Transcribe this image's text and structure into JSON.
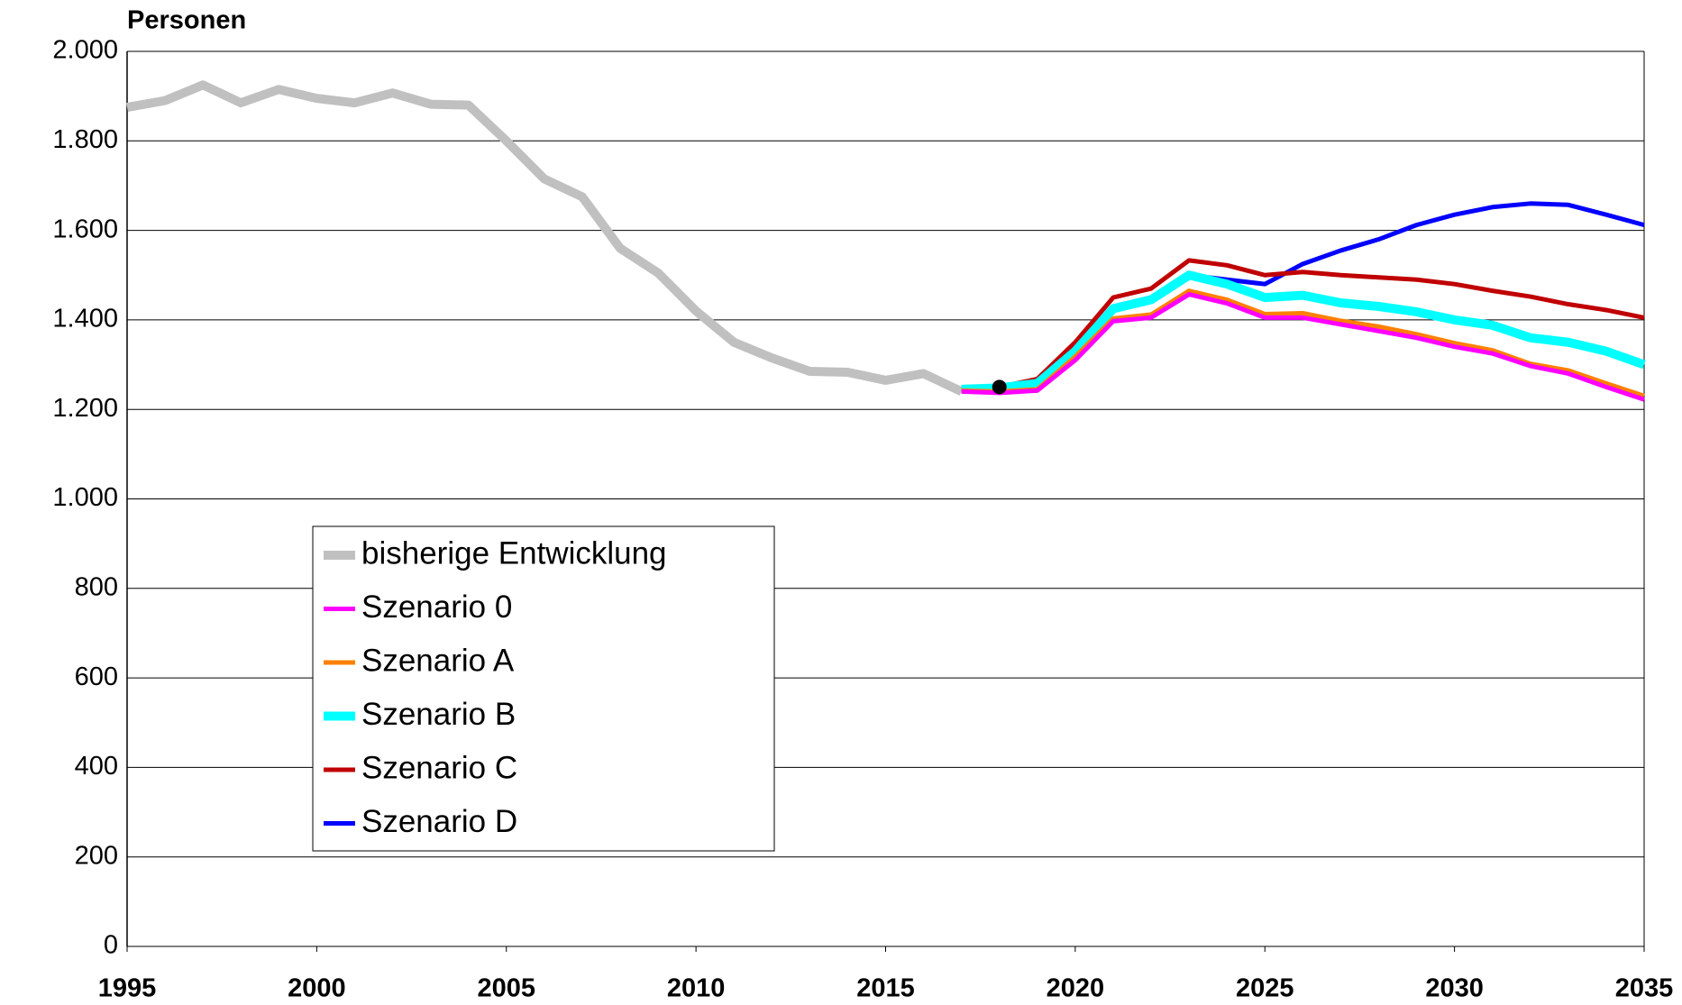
{
  "chart_data": {
    "type": "line",
    "y_label": "Personen",
    "ylim": [
      0,
      2000
    ],
    "yticks": [
      0,
      200,
      400,
      600,
      800,
      {
        "value": 1000,
        "label": "1.000"
      },
      {
        "value": 1200,
        "label": "1.200"
      },
      {
        "value": 1400,
        "label": "1.400"
      },
      {
        "value": 1600,
        "label": "1.600"
      },
      {
        "value": 1800,
        "label": "1.800"
      },
      {
        "value": 2000,
        "label": "2.000"
      }
    ],
    "xlim": [
      1995,
      2035
    ],
    "xticks": [
      1995,
      2000,
      2005,
      2010,
      2015,
      2020,
      2025,
      2030,
      2035
    ],
    "grid": true,
    "legend": "lower left",
    "series": [
      {
        "name": "bisherige Entwicklung",
        "color": "#c0c0c0",
        "x": [
          1995,
          1996,
          1997,
          1998,
          1999,
          2000,
          2001,
          2002,
          2003,
          2004,
          2005,
          2006,
          2007,
          2008,
          2009,
          2010,
          2011,
          2012,
          2013,
          2014,
          2015,
          2016,
          2017
        ],
        "values": [
          1875,
          1890,
          1925,
          1885,
          1915,
          1895,
          1885,
          1907,
          1882,
          1880,
          1800,
          1715,
          1675,
          1560,
          1505,
          1420,
          1350,
          1315,
          1285,
          1283,
          1265,
          1280,
          1240
        ]
      },
      {
        "name": "Szenario 0",
        "color": "#ff00ff",
        "x": [
          2017,
          2018,
          2019,
          2020,
          2021,
          2022,
          2023,
          2024,
          2025,
          2026,
          2027,
          2028,
          2029,
          2030,
          2031,
          2032,
          2033,
          2034,
          2035
        ],
        "values": [
          1240,
          1237,
          1242,
          1310,
          1397,
          1405,
          1457,
          1437,
          1405,
          1405,
          1390,
          1375,
          1360,
          1340,
          1325,
          1297,
          1280,
          1250,
          1222
        ]
      },
      {
        "name": "Szenario A",
        "color": "#ff8000",
        "x": [
          2017,
          2018,
          2019,
          2020,
          2021,
          2022,
          2023,
          2024,
          2025,
          2026,
          2027,
          2028,
          2029,
          2030,
          2031,
          2032,
          2033,
          2034,
          2035
        ],
        "values": [
          1242,
          1240,
          1245,
          1318,
          1403,
          1412,
          1465,
          1445,
          1413,
          1415,
          1398,
          1385,
          1368,
          1348,
          1332,
          1302,
          1287,
          1258,
          1230
        ]
      },
      {
        "name": "Szenario B",
        "color": "#00ffff",
        "x": [
          2017,
          2018,
          2019,
          2020,
          2021,
          2022,
          2023,
          2024,
          2025,
          2026,
          2027,
          2028,
          2029,
          2030,
          2031,
          2032,
          2033,
          2034,
          2035
        ],
        "values": [
          1245,
          1248,
          1258,
          1330,
          1425,
          1445,
          1500,
          1480,
          1450,
          1455,
          1438,
          1430,
          1418,
          1400,
          1388,
          1360,
          1350,
          1330,
          1300
        ]
      },
      {
        "name": "Szenario C",
        "color": "#c00000",
        "x": [
          2017,
          2018,
          2019,
          2020,
          2021,
          2022,
          2023,
          2024,
          2025,
          2026,
          2027,
          2028,
          2029,
          2030,
          2031,
          2032,
          2033,
          2034,
          2035
        ],
        "values": [
          1245,
          1250,
          1268,
          1350,
          1450,
          1470,
          1533,
          1522,
          1500,
          1507,
          1500,
          1495,
          1490,
          1480,
          1465,
          1452,
          1435,
          1422,
          1405
        ]
      },
      {
        "name": "Szenario D",
        "color": "#0000ff",
        "x": [
          2017,
          2018,
          2019,
          2020,
          2021,
          2022,
          2023,
          2024,
          2025,
          2026,
          2027,
          2028,
          2029,
          2030,
          2031,
          2032,
          2033,
          2034,
          2035
        ],
        "values": [
          1245,
          1250,
          1262,
          1330,
          1430,
          1450,
          1500,
          1490,
          1480,
          1525,
          1555,
          1580,
          1612,
          1635,
          1652,
          1660,
          1657,
          1635,
          1612
        ]
      }
    ],
    "marker": {
      "x": 2018,
      "y": 1250,
      "color": "#000000"
    }
  }
}
